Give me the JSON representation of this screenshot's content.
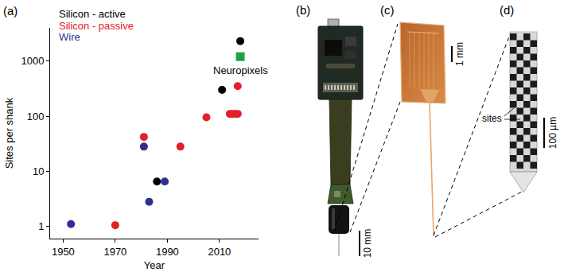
{
  "chart_data": {
    "type": "scatter",
    "panel": "(a)",
    "x_label": "Year",
    "y_label": "Sites per shank",
    "log": "y",
    "grid": false,
    "legend": "upper left",
    "xlim": [
      1945,
      2025
    ],
    "xticks": [
      1950,
      1970,
      1990,
      2010
    ],
    "ylim": [
      0.6,
      4000
    ],
    "yticks": [
      1,
      10,
      100,
      1000
    ],
    "series": [
      {
        "name": "Silicon - active",
        "color": "#000000",
        "marker": "circle",
        "x": [
          1986,
          2011,
          2018
        ],
        "values": [
          6.5,
          300,
          2300
        ]
      },
      {
        "name": "Silicon - passive",
        "color": "#e3202a",
        "marker": "circle",
        "x": [
          1970,
          1981,
          1995,
          2005,
          2014,
          2015,
          2016,
          2017,
          2017
        ],
        "values": [
          1.05,
          42,
          28,
          95,
          110,
          110,
          110,
          110,
          350
        ]
      },
      {
        "name": "Wire",
        "color": "#2e3192",
        "marker": "circle",
        "x": [
          1953,
          1981,
          1983,
          1989
        ],
        "values": [
          1.1,
          28,
          2.8,
          6.5
        ]
      },
      {
        "name": "Neuropixels",
        "color": "#1ea24b",
        "marker": "square",
        "x": [
          2018
        ],
        "values": [
          1200
        ]
      }
    ]
  },
  "panels": [
    {
      "label": "(b)",
      "scale_bar": "10 mm"
    },
    {
      "label": "(c)",
      "scale_bar": "1 mm"
    },
    {
      "label": "(d)",
      "scale_bar": "100 µm",
      "callout": "sites"
    }
  ]
}
